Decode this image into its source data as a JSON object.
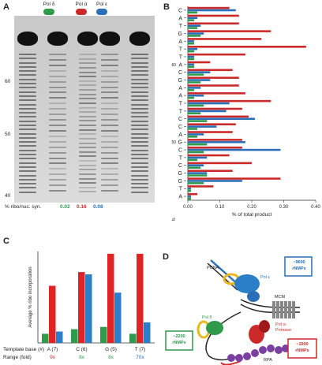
{
  "panelA": {
    "letter": "A",
    "lanes": [
      {
        "label": "Pol δ",
        "color": "#2e9a4a"
      },
      {
        "label": "Pol α",
        "color": "#cc2a2a"
      },
      {
        "label": "Pol ε",
        "color": "#2a6fb8"
      }
    ],
    "markers": [
      "60",
      "50",
      "40"
    ],
    "ribo_label": "% ribo/nuc. syn.",
    "ribo_values": [
      {
        "value": "0.02",
        "color": "#2e9a4a"
      },
      {
        "value": "0.16",
        "color": "#cc2a2a"
      },
      {
        "value": "0.08",
        "color": "#2a6fb8"
      }
    ]
  },
  "panelB": {
    "letter": "B",
    "xlabel": "% of total product",
    "markers": [
      {
        "text": "60",
        "index": 7
      },
      {
        "text": "50",
        "index": 17
      },
      {
        "text": "41",
        "index": 27
      }
    ]
  },
  "panelC": {
    "letter": "C",
    "ylabel": "Average % ribo incorporation",
    "row1_label": "Template base (#)",
    "row2_label": "Range (fold)",
    "groups": [
      {
        "base": "A (7)",
        "fold": "9x",
        "fold_color": "#cc2a2a"
      },
      {
        "base": "C (6)",
        "fold": "8x",
        "fold_color": "#2e9a4a"
      },
      {
        "base": "G (5)",
        "fold": "8x",
        "fold_color": "#2e9a4a"
      },
      {
        "base": "T (7)",
        "fold": "70x",
        "fold_color": "#2a6fb8"
      }
    ]
  },
  "panelD": {
    "letter": "D",
    "pol_e_box": {
      "line1": "~9600",
      "line2": "rNMPs",
      "color": "#2a6fb8"
    },
    "pol_d_box": {
      "line1": "~2200",
      "line2": "rNMPs",
      "color": "#2e9a4a"
    },
    "pol_a_box": {
      "line1": "~1900",
      "line2": "rNMPs",
      "color": "#cc2a2a"
    },
    "pcna": "PCNA",
    "pol_e": "Pol ε",
    "mcm": "MCM",
    "pol_d": "Pol δ",
    "pol_a": "Pol α-",
    "primase": "Primase",
    "rpa": "RPA"
  },
  "chart_data": [
    {
      "type": "bar",
      "orientation": "horizontal",
      "categories": [
        "C",
        "A",
        "T",
        "G",
        "A",
        "T",
        "T",
        "A",
        "C",
        "G",
        "A",
        "A",
        "T",
        "T",
        "C",
        "C",
        "A",
        "G",
        "C",
        "T",
        "C",
        "G",
        "G",
        "T",
        "A"
      ],
      "series": [
        {
          "values": [
            0.13,
            0.16,
            0.16,
            0.26,
            0.23,
            0.37,
            0.18,
            0.07,
            0.14,
            0.16,
            0.16,
            0.18,
            0.26,
            0.17,
            0.19,
            0.15,
            0.14,
            0.17,
            0.17,
            0.13,
            0.2,
            0.14,
            0.29,
            0.08,
            0.03
          ],
          "color": "#cc2a2a"
        },
        {
          "values": [
            0.15,
            0.03,
            0.04,
            0.05,
            0.02,
            0.03,
            0.02,
            0.02,
            0.07,
            0.07,
            0.04,
            0.05,
            0.13,
            0.12,
            0.21,
            0.09,
            0.05,
            0.18,
            0.29,
            0.06,
            0.05,
            0.06,
            0.17,
            0.01,
            0.01
          ],
          "color": "#2a6fb8"
        },
        {
          "values": [
            0.03,
            0.02,
            0.03,
            0.04,
            0.02,
            0.02,
            0.02,
            0.02,
            0.05,
            0.04,
            0.02,
            0.02,
            0.05,
            0.04,
            0.06,
            0.03,
            0.03,
            0.06,
            0.05,
            0.03,
            0.04,
            0.06,
            0.05,
            0.01,
            0.01
          ],
          "color": "#2e9a4a"
        }
      ],
      "xlabel": "% of total product",
      "xlim": [
        0,
        0.4
      ],
      "xticks": [
        "0.00",
        "0.10",
        "0.20",
        "0.30",
        "0.40"
      ]
    },
    {
      "type": "bar",
      "categories": [
        "A (7)",
        "C (6)",
        "G (5)",
        "T (7)"
      ],
      "series": [
        {
          "values": [
            0.02,
            0.03,
            0.035,
            0.02
          ],
          "color": "#2e9a4a"
        },
        {
          "values": [
            0.125,
            0.155,
            0.195,
            0.195
          ],
          "color": "#e02424"
        },
        {
          "values": [
            0.025,
            0.15,
            0.11,
            0.045
          ],
          "color": "#2a7fc8"
        }
      ],
      "ylabel": "Average % ribo incorporation",
      "ylim": [
        0,
        0.2
      ]
    }
  ]
}
